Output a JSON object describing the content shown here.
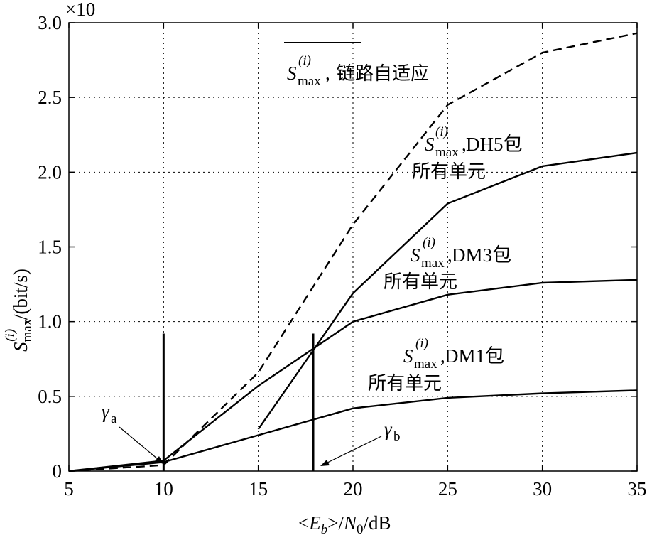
{
  "chart_data": {
    "type": "line",
    "scale_label": "×10",
    "xlabel": "<E_b>/N_0/dB",
    "ylabel": "S_max^(i)/(bit/s)",
    "xlim": [
      5,
      35
    ],
    "ylim": [
      0,
      3.0
    ],
    "x_ticks": [
      "5",
      "10",
      "15",
      "20",
      "25",
      "30",
      "35"
    ],
    "y_ticks": [
      "0",
      "0.5",
      "1.0",
      "1.5",
      "2.0",
      "2.5",
      "3.0"
    ],
    "grid": true,
    "series": [
      {
        "name": "S_max^(i), 链路自适应",
        "style": "dashed",
        "x": [
          5,
          10,
          15,
          20,
          25,
          30,
          35
        ],
        "y": [
          0.0,
          0.04,
          0.66,
          1.65,
          2.45,
          2.8,
          2.93
        ]
      },
      {
        "name": "S_max^(i), DH5包 所有单元",
        "style": "solid",
        "x": [
          15,
          20,
          25,
          30,
          35
        ],
        "y": [
          0.28,
          1.19,
          1.79,
          2.04,
          2.13
        ]
      },
      {
        "name": "S_max^(i), DM3包 所有单元",
        "style": "solid",
        "x": [
          5,
          10,
          15,
          20,
          25,
          30,
          35
        ],
        "y": [
          0.0,
          0.07,
          0.57,
          1.0,
          1.18,
          1.26,
          1.28
        ]
      },
      {
        "name": "S_max^(i), DM1包 所有单元",
        "style": "solid",
        "x": [
          5,
          10,
          15,
          20,
          25,
          30,
          35
        ],
        "y": [
          0.0,
          0.06,
          0.24,
          0.42,
          0.49,
          0.52,
          0.54
        ]
      }
    ],
    "vertical_markers": [
      {
        "label": "γa",
        "x": 10,
        "y_top": 0.92
      },
      {
        "label": "γb",
        "x": 17.9,
        "y_top": 0.92
      }
    ],
    "legend_text": {
      "adaptive": "S_max^(i), 链路自适应",
      "dh5": "S_max^(i), DH5包",
      "dm3": "S_max^(i), DM3包",
      "dm1": "S_max^(i), DM1包",
      "all_units": "所有单元"
    }
  },
  "labels": {
    "s": "S",
    "max_sub": "max",
    "i_sup": "(i)",
    "adaptive_text": "链路自适应",
    "dh5_text": "DH5包",
    "dm3_text": "DM3包",
    "dm1_text": "DM1包",
    "all_units": "所有单元",
    "gamma": "γ",
    "gamma_a_sub": "a",
    "gamma_b_sub": "b",
    "xlabel_parts": {
      "lt": "<",
      "E": "E",
      "b": "b",
      "gt": ">/",
      "N": "N",
      "zero": "0",
      "tail": "/dB"
    },
    "ylabel_tail": ",/(bit/s)"
  }
}
